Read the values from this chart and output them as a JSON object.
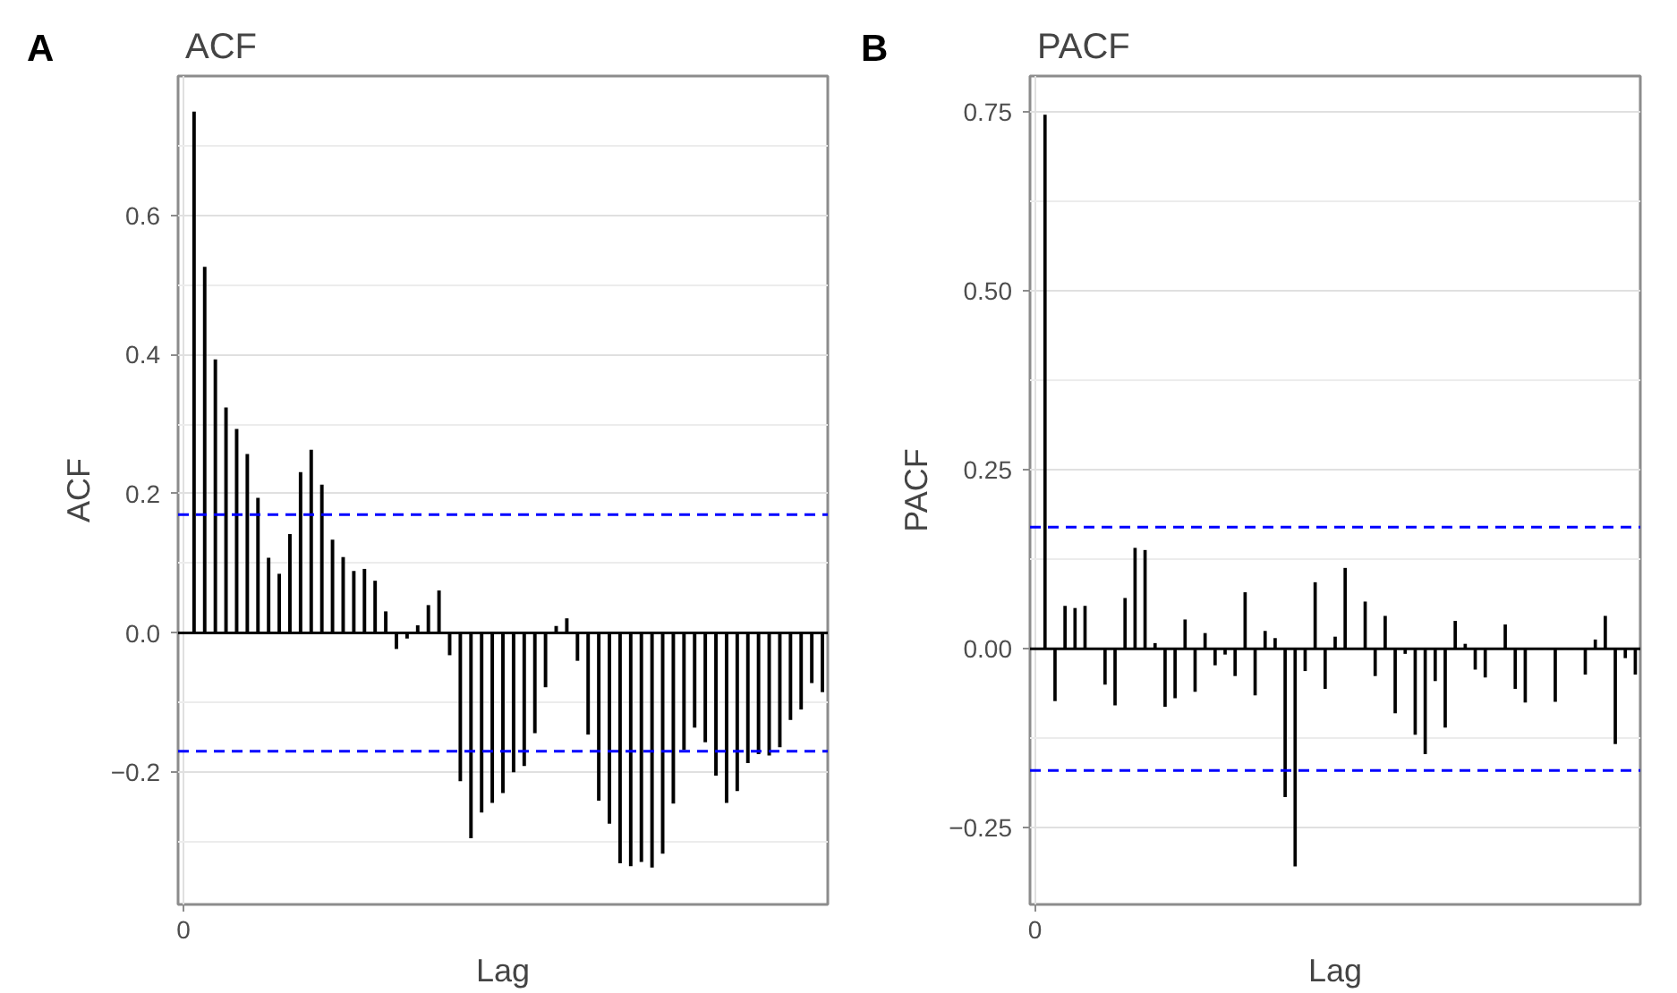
{
  "chart_data": [
    {
      "type": "bar",
      "title": "ACF",
      "xlabel": "Lag",
      "ylabel": "ACF",
      "annotations": [
        "A"
      ],
      "color": "#000000",
      "categories": [
        "0",
        null,
        null,
        null,
        null,
        null,
        null,
        null,
        null,
        null,
        null,
        null,
        null,
        null,
        null,
        null,
        null,
        null,
        null,
        null,
        null,
        null,
        null,
        null,
        null,
        null,
        null,
        null,
        null,
        null,
        null,
        null,
        null,
        null,
        null,
        null,
        null,
        null,
        null,
        null,
        null,
        null,
        null,
        null,
        null,
        null,
        null,
        null,
        null,
        null,
        null,
        null,
        null,
        null,
        null,
        null,
        null,
        null,
        null,
        null,
        null
      ],
      "values": [
        null,
        0.749,
        0.526,
        0.393,
        0.324,
        0.293,
        0.257,
        0.194,
        0.108,
        0.085,
        0.142,
        0.231,
        0.263,
        0.213,
        0.134,
        0.109,
        0.089,
        0.092,
        0.075,
        0.031,
        -0.023,
        -0.008,
        0.011,
        0.04,
        0.061,
        -0.032,
        -0.213,
        -0.295,
        -0.258,
        -0.244,
        -0.23,
        -0.2,
        -0.191,
        -0.144,
        -0.078,
        0.01,
        0.021,
        -0.04,
        -0.146,
        -0.241,
        -0.274,
        -0.331,
        -0.335,
        -0.329,
        -0.337,
        -0.317,
        -0.245,
        -0.168,
        -0.136,
        -0.157,
        -0.205,
        -0.244,
        -0.227,
        -0.187,
        -0.174,
        -0.176,
        -0.164,
        -0.125,
        -0.11,
        -0.072,
        -0.085
      ],
      "ylim": [
        -0.39,
        0.8
      ],
      "yticks": [
        {
          "value": -0.2,
          "label": "−0.2"
        },
        {
          "value": 0.0,
          "label": "0.0"
        },
        {
          "value": 0.2,
          "label": "0.2"
        },
        {
          "value": 0.4,
          "label": "0.4"
        },
        {
          "value": 0.6,
          "label": "0.6"
        }
      ],
      "ref_lines": [
        {
          "axis": "y",
          "value": 0,
          "label": null,
          "color": "#000000",
          "line_style": "solid"
        },
        {
          "axis": "y",
          "value": 0.17,
          "label": null,
          "color": "#0000ff",
          "line_style": "dashed"
        },
        {
          "axis": "y",
          "value": -0.17,
          "label": null,
          "color": "#0000ff",
          "line_style": "dashed"
        }
      ],
      "grid": true
    },
    {
      "type": "bar",
      "title": "PACF",
      "xlabel": "Lag",
      "ylabel": "PACF",
      "annotations": [
        "B"
      ],
      "color": "#000000",
      "categories": [
        "0",
        null,
        null,
        null,
        null,
        null,
        null,
        null,
        null,
        null,
        null,
        null,
        null,
        null,
        null,
        null,
        null,
        null,
        null,
        null,
        null,
        null,
        null,
        null,
        null,
        null,
        null,
        null,
        null,
        null,
        null,
        null,
        null,
        null,
        null,
        null,
        null,
        null,
        null,
        null,
        null,
        null,
        null,
        null,
        null,
        null,
        null,
        null,
        null,
        null,
        null,
        null,
        null,
        null,
        null,
        null,
        null,
        null,
        null,
        null,
        null
      ],
      "values": [
        null,
        0.746,
        -0.073,
        0.06,
        0.057,
        0.06,
        null,
        -0.05,
        -0.079,
        0.071,
        0.141,
        0.138,
        0.008,
        -0.081,
        -0.069,
        0.041,
        -0.06,
        0.022,
        -0.023,
        -0.008,
        -0.038,
        0.079,
        -0.065,
        0.025,
        0.015,
        -0.207,
        -0.304,
        -0.031,
        0.093,
        -0.056,
        0.017,
        0.113,
        null,
        0.066,
        -0.038,
        0.046,
        -0.09,
        -0.007,
        -0.12,
        -0.147,
        -0.045,
        -0.11,
        0.039,
        0.007,
        -0.029,
        -0.04,
        null,
        0.034,
        -0.056,
        -0.075,
        null,
        null,
        -0.074,
        0.0,
        0.0,
        -0.036,
        0.013,
        0.046,
        -0.133,
        -0.013,
        -0.036
      ],
      "ylim": [
        -0.357,
        0.8
      ],
      "yticks": [
        {
          "value": -0.25,
          "label": "−0.25"
        },
        {
          "value": 0.0,
          "label": "0.00"
        },
        {
          "value": 0.25,
          "label": "0.25"
        },
        {
          "value": 0.5,
          "label": "0.50"
        },
        {
          "value": 0.75,
          "label": "0.75"
        }
      ],
      "ref_lines": [
        {
          "axis": "y",
          "value": 0,
          "label": null,
          "color": "#000000",
          "line_style": "solid"
        },
        {
          "axis": "y",
          "value": 0.17,
          "label": null,
          "color": "#0000ff",
          "line_style": "dashed"
        },
        {
          "axis": "y",
          "value": -0.17,
          "label": null,
          "color": "#0000ff",
          "line_style": "dashed"
        }
      ],
      "grid": true
    }
  ]
}
